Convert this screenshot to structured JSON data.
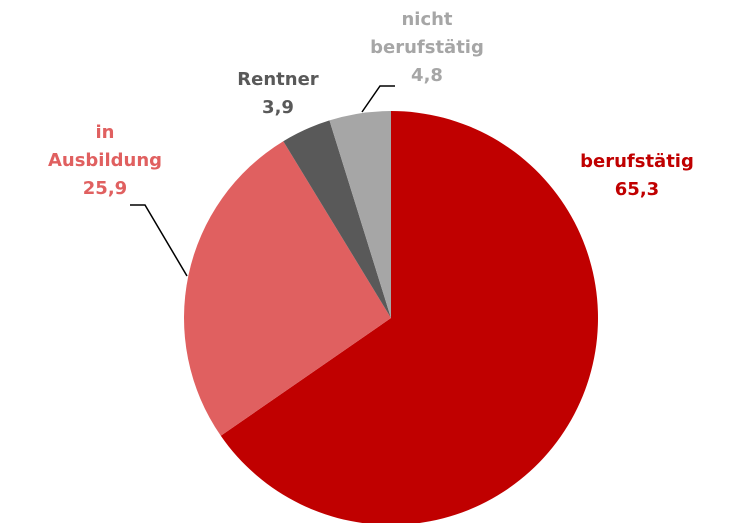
{
  "chart_data": {
    "type": "pie",
    "categories": [
      "berufstätig",
      "in Ausbildung",
      "Rentner",
      "nicht berufstätig"
    ],
    "values": [
      65.3,
      25.9,
      3.9,
      4.8
    ],
    "value_labels": [
      "65,3",
      "25,9",
      "3,9",
      "4,8"
    ],
    "colors": [
      "#c00000",
      "#e06060",
      "#595959",
      "#a6a6a6"
    ]
  }
}
